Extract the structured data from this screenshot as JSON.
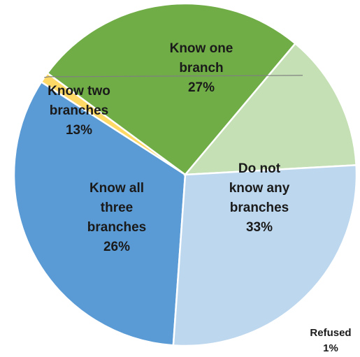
{
  "chart_data": {
    "type": "pie",
    "title": "",
    "start_angle_deg": 94,
    "direction": "clockwise",
    "slices": [
      {
        "key": "none",
        "label_lines": [
          "Do not",
          "know any",
          "branches"
        ],
        "percent_text": "33%",
        "value": 33,
        "color": "#5b9bd5"
      },
      {
        "key": "refused",
        "label_lines": [
          "Refused"
        ],
        "percent_text": "1%",
        "value": 1,
        "color": "#ffd966"
      },
      {
        "key": "all",
        "label_lines": [
          "Know all",
          "three",
          "branches"
        ],
        "percent_text": "26%",
        "value": 26,
        "color": "#70ad47"
      },
      {
        "key": "two",
        "label_lines": [
          "Know two",
          "branches"
        ],
        "percent_text": "13%",
        "value": 13,
        "color": "#c5e0b4"
      },
      {
        "key": "one",
        "label_lines": [
          "Know one",
          "branch"
        ],
        "percent_text": "27%",
        "value": 27,
        "color": "#bdd7ee"
      }
    ]
  }
}
